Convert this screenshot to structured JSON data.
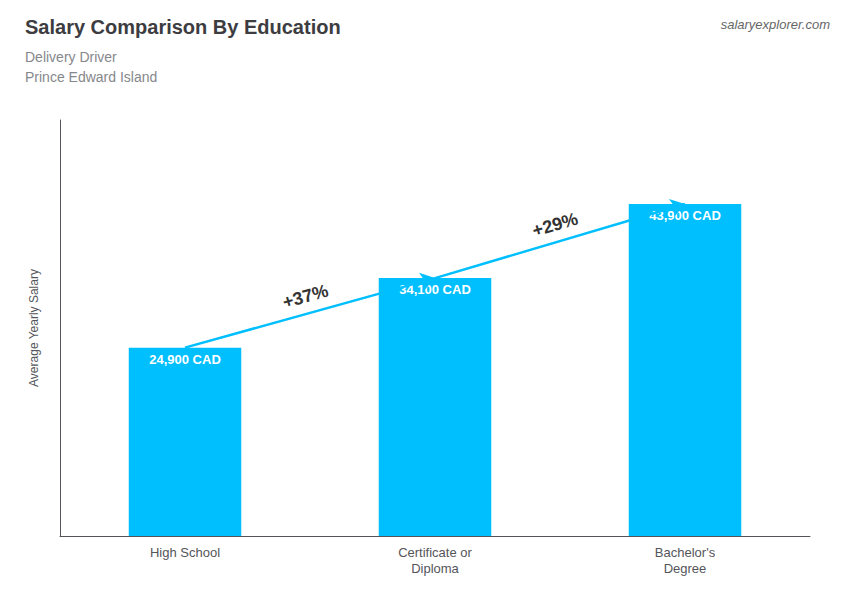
{
  "chart_data": {
    "type": "bar",
    "title": "Salary Comparison By Education",
    "subtitle": [
      "Delivery Driver",
      "Prince Edward Island"
    ],
    "source": "salaryexplorer.com",
    "categories": [
      "High School",
      "Certificate or\nDiploma",
      "Bachelor's\nDegree"
    ],
    "values": [
      24900,
      34100,
      43900
    ],
    "value_labels": [
      "24,900 CAD",
      "34,100 CAD",
      "43,900 CAD"
    ],
    "data_labels": true,
    "annotations": [
      {
        "text": "+37%",
        "from": 0,
        "to": 1
      },
      {
        "text": "+29%",
        "from": 1,
        "to": 2
      }
    ],
    "ylabel": "Average Yearly Salary",
    "ylim": [
      0,
      55000
    ],
    "tick_labels": "x",
    "grid": false,
    "legend": false,
    "color": "#00BFFF"
  }
}
